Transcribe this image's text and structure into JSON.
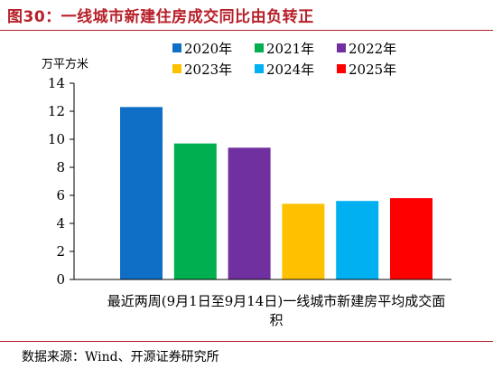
{
  "figure": {
    "title": "图30：一线城市新建住房成交同比由负转正",
    "source": "数据来源：Wind、开源证券研究所"
  },
  "chart_data": {
    "type": "bar",
    "title": "",
    "ylabel": "万平方米",
    "xlabel": "最近两周(9月1日至9月14日)一线城市新建房平均成交面积",
    "xlabel_lines": [
      "最近两周(9月1日至9月14日)一线城市新建房平均成交面",
      "积"
    ],
    "ylim": [
      0,
      14
    ],
    "yticks": [
      0,
      2,
      4,
      6,
      8,
      10,
      12,
      14
    ],
    "grid": false,
    "legend_position": "top",
    "series": [
      {
        "name": "2020年",
        "values": [
          12.3
        ],
        "color": "#0f6fc6"
      },
      {
        "name": "2021年",
        "values": [
          9.7
        ],
        "color": "#00b050"
      },
      {
        "name": "2022年",
        "values": [
          9.4
        ],
        "color": "#7030a0"
      },
      {
        "name": "2023年",
        "values": [
          5.4
        ],
        "color": "#ffc000"
      },
      {
        "name": "2024年",
        "values": [
          5.6
        ],
        "color": "#00b0f0"
      },
      {
        "name": "2025年",
        "values": [
          5.8
        ],
        "color": "#ff0000"
      }
    ]
  }
}
